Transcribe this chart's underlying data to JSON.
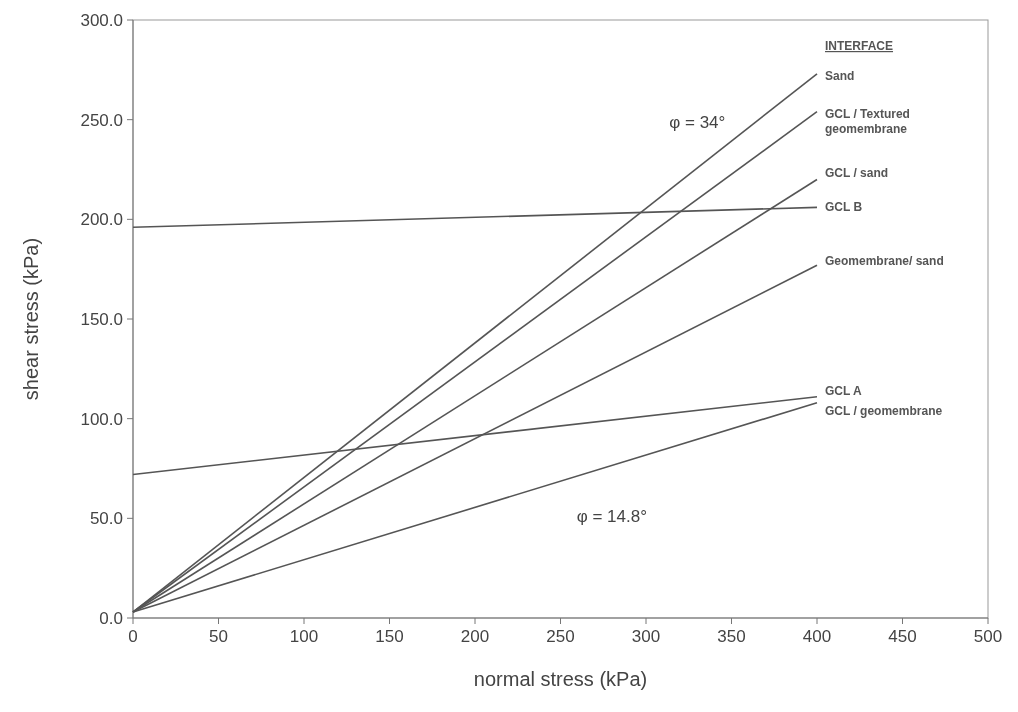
{
  "chart_data": {
    "type": "line",
    "xlabel": "normal stress (kPa)",
    "ylabel": "shear stress (kPa)",
    "legend_title": "INTERFACE",
    "xlim": [
      0,
      500
    ],
    "xticks": [
      0,
      50,
      100,
      150,
      200,
      250,
      300,
      350,
      400,
      450,
      500
    ],
    "ylim": [
      0,
      300
    ],
    "yticks": [
      {
        "value": 0,
        "label": "0.0"
      },
      {
        "value": 50,
        "label": "50.0"
      },
      {
        "value": 100,
        "label": "100.0"
      },
      {
        "value": 150,
        "label": "150.0"
      },
      {
        "value": 200,
        "label": "200.0"
      },
      {
        "value": 250,
        "label": "250.0"
      },
      {
        "value": 300,
        "label": "300.0"
      }
    ],
    "grid": false,
    "marker": "none",
    "line_style": "solid",
    "annotations": [
      "φ = 34°",
      "φ = 14.8°"
    ],
    "x": [
      0,
      400
    ],
    "series": [
      {
        "name": "Sand",
        "color": "#555555",
        "values": [
          3,
          273
        ]
      },
      {
        "name": "GCL / Textured geomembrane",
        "color": "#555555",
        "values": [
          3,
          254
        ]
      },
      {
        "name": "GCL / sand",
        "color": "#555555",
        "values": [
          3,
          220
        ]
      },
      {
        "name": "GCL B",
        "color": "#555555",
        "values": [
          196,
          206
        ]
      },
      {
        "name": "Geomembrane/ sand",
        "color": "#555555",
        "values": [
          3,
          177
        ]
      },
      {
        "name": "GCL A",
        "color": "#555555",
        "values": [
          72,
          111
        ]
      },
      {
        "name": "GCL / geomembrane",
        "color": "#555555",
        "values": [
          3,
          108
        ]
      }
    ]
  }
}
